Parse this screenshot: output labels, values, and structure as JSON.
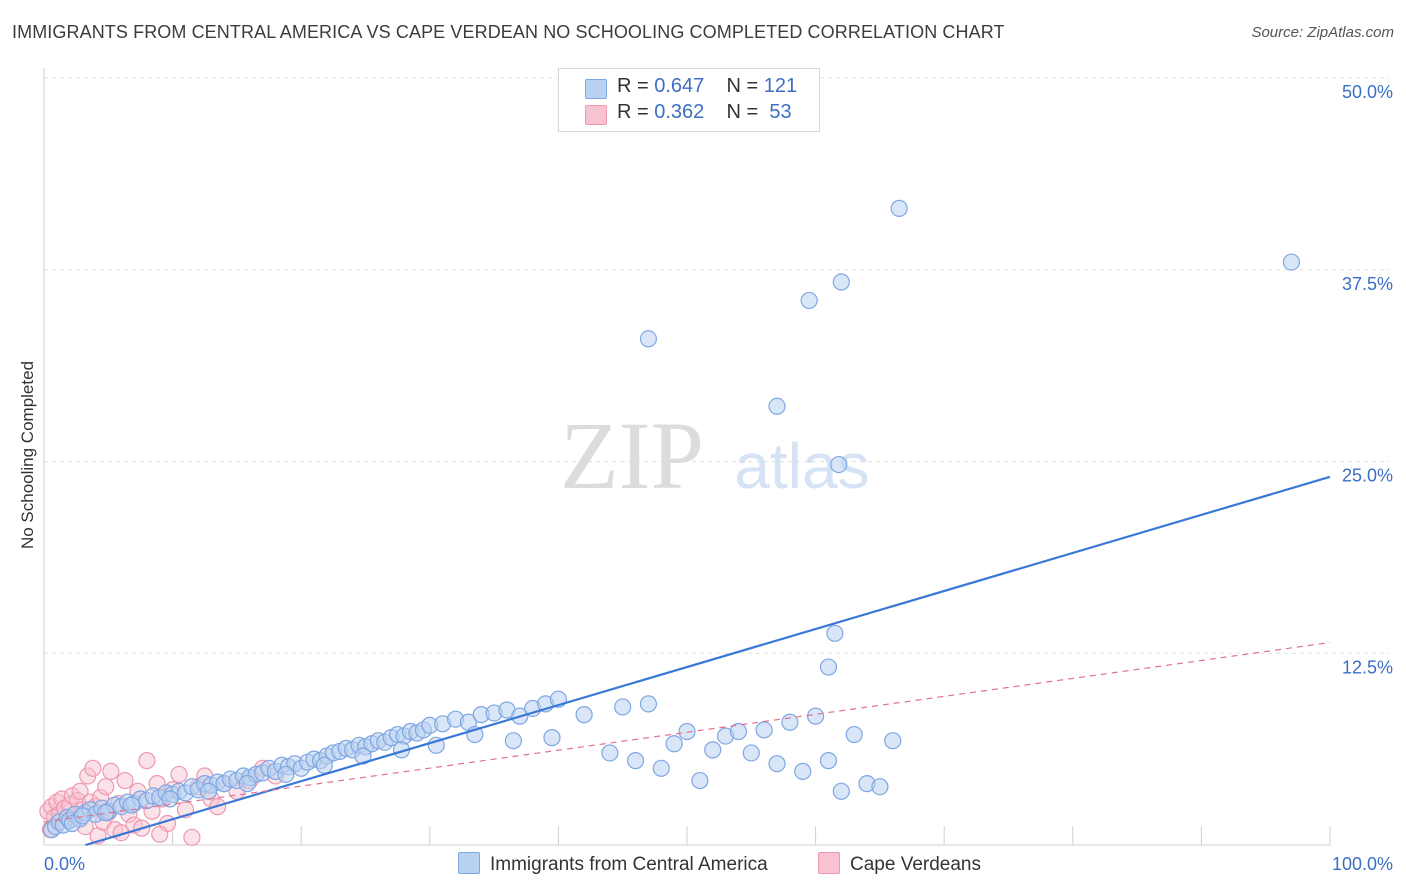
{
  "header": {
    "title": "IMMIGRANTS FROM CENTRAL AMERICA VS CAPE VERDEAN NO SCHOOLING COMPLETED CORRELATION CHART",
    "source": "Source: ZipAtlas.com"
  },
  "watermark": {
    "zip": "ZIP",
    "atlas": "atlas"
  },
  "colors": {
    "blue": "#3a78d6",
    "blue_fill": "#b9d1f1",
    "blue_stroke": "#7ea7e3",
    "pink": "#e0728e",
    "pink_fill": "#f8c3d1",
    "pink_stroke": "#ee98b0",
    "axis_text": "#3c6fc4"
  },
  "legend": {
    "rows": [
      {
        "r_label": "R = ",
        "r_value": "0.647",
        "n_label": "N = ",
        "n_value": "121"
      },
      {
        "r_label": "R = ",
        "r_value": "0.362",
        "n_label": "N = ",
        "n_value": " 53"
      }
    ],
    "bottom": [
      "Immigrants from Central America",
      "Cape Verdeans"
    ]
  },
  "chart_data": {
    "type": "scatter",
    "title": "IMMIGRANTS FROM CENTRAL AMERICA VS CAPE VERDEAN NO SCHOOLING COMPLETED CORRELATION CHART",
    "xlabel": "",
    "ylabel": "No Schooling Completed",
    "xlim": [
      0,
      100
    ],
    "ylim": [
      0,
      50
    ],
    "x_tick_labels": [
      "0.0%",
      "100.0%"
    ],
    "y_ticks": [
      12.5,
      25.0,
      37.5,
      50.0
    ],
    "y_tick_labels": [
      "12.5%",
      "25.0%",
      "37.5%",
      "50.0%"
    ],
    "grid": true,
    "legend_position": "top-center",
    "series": [
      {
        "name": "Immigrants from Central America",
        "color": "#3a78d6",
        "trendline": {
          "x": [
            0,
            100
          ],
          "y": [
            -0.8,
            24.0
          ],
          "style": "solid"
        },
        "points": [
          [
            0.6,
            1.0
          ],
          [
            0.9,
            1.2
          ],
          [
            1.2,
            1.5
          ],
          [
            1.5,
            1.3
          ],
          [
            1.8,
            1.8
          ],
          [
            2.0,
            1.6
          ],
          [
            2.4,
            2.0
          ],
          [
            2.8,
            1.7
          ],
          [
            3.2,
            2.1
          ],
          [
            3.6,
            2.3
          ],
          [
            4.0,
            2.0
          ],
          [
            4.5,
            2.4
          ],
          [
            5.0,
            2.2
          ],
          [
            5.5,
            2.6
          ],
          [
            6.0,
            2.5
          ],
          [
            6.5,
            2.8
          ],
          [
            7.0,
            2.7
          ],
          [
            7.5,
            3.0
          ],
          [
            8.0,
            2.9
          ],
          [
            8.5,
            3.2
          ],
          [
            9.0,
            3.1
          ],
          [
            9.5,
            3.4
          ],
          [
            10.0,
            3.3
          ],
          [
            10.5,
            3.5
          ],
          [
            11.0,
            3.4
          ],
          [
            11.5,
            3.8
          ],
          [
            12.0,
            3.6
          ],
          [
            12.5,
            4.0
          ],
          [
            13.0,
            3.9
          ],
          [
            13.5,
            4.1
          ],
          [
            14.0,
            4.0
          ],
          [
            14.5,
            4.3
          ],
          [
            15.0,
            4.2
          ],
          [
            15.5,
            4.5
          ],
          [
            16.0,
            4.4
          ],
          [
            16.5,
            4.6
          ],
          [
            17.0,
            4.7
          ],
          [
            17.5,
            5.0
          ],
          [
            18.0,
            4.8
          ],
          [
            18.5,
            5.2
          ],
          [
            19.0,
            5.1
          ],
          [
            19.5,
            5.3
          ],
          [
            20.0,
            5.0
          ],
          [
            20.5,
            5.4
          ],
          [
            21.0,
            5.6
          ],
          [
            21.5,
            5.5
          ],
          [
            22.0,
            5.8
          ],
          [
            22.5,
            6.0
          ],
          [
            23.0,
            6.1
          ],
          [
            23.5,
            6.3
          ],
          [
            24.0,
            6.2
          ],
          [
            24.5,
            6.5
          ],
          [
            25.0,
            6.4
          ],
          [
            25.5,
            6.6
          ],
          [
            26.0,
            6.8
          ],
          [
            26.5,
            6.7
          ],
          [
            27.0,
            7.0
          ],
          [
            27.5,
            7.2
          ],
          [
            28.0,
            7.1
          ],
          [
            28.5,
            7.4
          ],
          [
            29.0,
            7.3
          ],
          [
            29.5,
            7.5
          ],
          [
            30.0,
            7.8
          ],
          [
            31.0,
            7.9
          ],
          [
            32.0,
            8.2
          ],
          [
            33.0,
            8.0
          ],
          [
            34.0,
            8.5
          ],
          [
            35.0,
            8.6
          ],
          [
            36.0,
            8.8
          ],
          [
            37.0,
            8.4
          ],
          [
            38.0,
            8.9
          ],
          [
            39.0,
            9.2
          ],
          [
            40.0,
            9.5
          ],
          [
            2.2,
            1.4
          ],
          [
            3.0,
            1.9
          ],
          [
            4.8,
            2.1
          ],
          [
            6.8,
            2.6
          ],
          [
            9.8,
            3.0
          ],
          [
            12.8,
            3.5
          ],
          [
            15.8,
            4.0
          ],
          [
            18.8,
            4.6
          ],
          [
            21.8,
            5.2
          ],
          [
            24.8,
            5.8
          ],
          [
            27.8,
            6.2
          ],
          [
            30.5,
            6.5
          ],
          [
            33.5,
            7.2
          ],
          [
            36.5,
            6.8
          ],
          [
            39.5,
            7.0
          ],
          [
            42.0,
            8.5
          ],
          [
            44.0,
            6.0
          ],
          [
            45.0,
            9.0
          ],
          [
            46.0,
            5.5
          ],
          [
            47.0,
            9.2
          ],
          [
            48.0,
            5.0
          ],
          [
            49.0,
            6.6
          ],
          [
            50.0,
            7.4
          ],
          [
            51.0,
            4.2
          ],
          [
            52.0,
            6.2
          ],
          [
            53.0,
            7.1
          ],
          [
            54.0,
            7.4
          ],
          [
            55.0,
            6.0
          ],
          [
            56.0,
            7.5
          ],
          [
            57.0,
            5.3
          ],
          [
            58.0,
            8.0
          ],
          [
            59.0,
            4.8
          ],
          [
            60.0,
            8.4
          ],
          [
            61.0,
            5.5
          ],
          [
            62.0,
            3.5
          ],
          [
            63.0,
            7.2
          ],
          [
            64.0,
            4.0
          ],
          [
            65.0,
            3.8
          ],
          [
            66.0,
            6.8
          ],
          [
            47.0,
            33.0
          ],
          [
            57.0,
            28.6
          ],
          [
            59.5,
            35.5
          ],
          [
            61.8,
            24.8
          ],
          [
            62.0,
            36.7
          ],
          [
            66.5,
            41.5
          ],
          [
            97.0,
            38.0
          ],
          [
            61.0,
            11.6
          ],
          [
            61.5,
            13.8
          ]
        ]
      },
      {
        "name": "Cape Verdeans",
        "color": "#e0728e",
        "trendline": {
          "x": [
            0,
            100
          ],
          "y": [
            1.5,
            13.2
          ],
          "style": "dashed"
        },
        "points": [
          [
            0.3,
            2.2
          ],
          [
            0.6,
            2.5
          ],
          [
            0.8,
            1.8
          ],
          [
            1.0,
            2.8
          ],
          [
            1.2,
            2.0
          ],
          [
            1.4,
            3.0
          ],
          [
            1.6,
            2.4
          ],
          [
            1.8,
            1.6
          ],
          [
            2.0,
            2.6
          ],
          [
            2.2,
            3.2
          ],
          [
            2.4,
            2.0
          ],
          [
            2.6,
            2.9
          ],
          [
            2.8,
            3.5
          ],
          [
            3.0,
            2.3
          ],
          [
            3.2,
            1.2
          ],
          [
            3.4,
            4.5
          ],
          [
            3.6,
            2.8
          ],
          [
            3.8,
            5.0
          ],
          [
            4.0,
            2.5
          ],
          [
            4.2,
            0.6
          ],
          [
            4.4,
            3.1
          ],
          [
            4.6,
            1.5
          ],
          [
            4.8,
            3.8
          ],
          [
            5.0,
            2.1
          ],
          [
            5.2,
            4.8
          ],
          [
            5.5,
            1.0
          ],
          [
            5.8,
            2.7
          ],
          [
            6.0,
            0.8
          ],
          [
            6.3,
            4.2
          ],
          [
            6.6,
            2.0
          ],
          [
            7.0,
            1.3
          ],
          [
            7.3,
            3.5
          ],
          [
            7.6,
            1.1
          ],
          [
            8.0,
            5.5
          ],
          [
            8.4,
            2.2
          ],
          [
            8.8,
            4.0
          ],
          [
            9.2,
            3.0
          ],
          [
            9.6,
            1.4
          ],
          [
            10.0,
            3.6
          ],
          [
            10.5,
            4.6
          ],
          [
            11.0,
            2.3
          ],
          [
            11.5,
            0.5
          ],
          [
            12.0,
            3.8
          ],
          [
            12.5,
            4.5
          ],
          [
            13.0,
            3.0
          ],
          [
            13.5,
            2.5
          ],
          [
            14.0,
            4.0
          ],
          [
            15.0,
            3.5
          ],
          [
            16.0,
            4.2
          ],
          [
            17.0,
            5.0
          ],
          [
            18.0,
            4.5
          ],
          [
            9.0,
            0.7
          ],
          [
            0.5,
            1.0
          ]
        ]
      }
    ]
  }
}
